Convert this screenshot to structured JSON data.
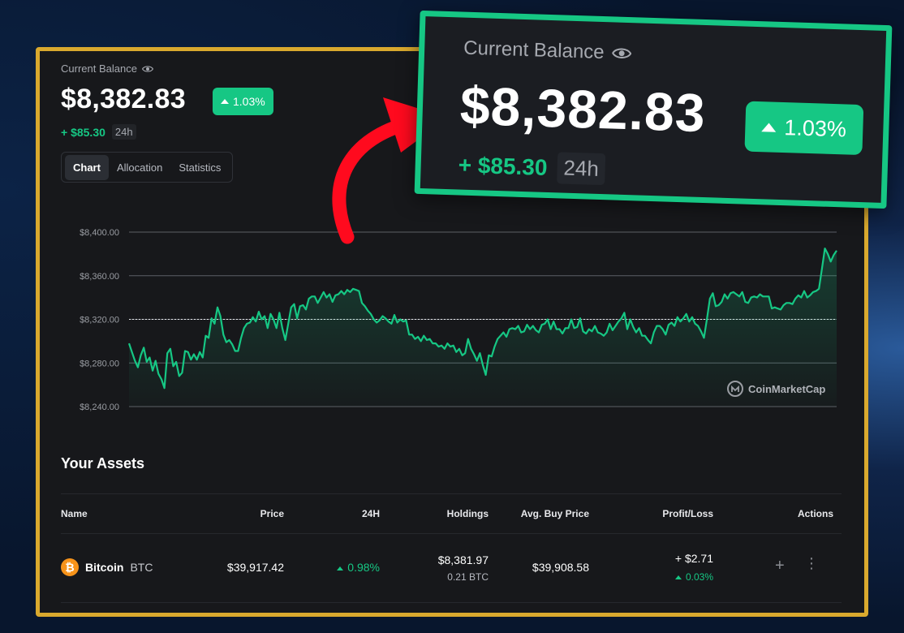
{
  "balance": {
    "label": "Current Balance",
    "value": "$8,382.83",
    "percent": "1.03%",
    "change": "+ $85.30",
    "period": "24h"
  },
  "tabs": [
    "Chart",
    "Allocation",
    "Statistics"
  ],
  "active_tab": "Chart",
  "chart_watermark": "CoinMarketCap",
  "chart_data": {
    "type": "area",
    "y_ticks": [
      "$8,400.00",
      "$8,360.00",
      "$8,320.00",
      "$8,280.00",
      "$8,240.00"
    ],
    "ylim": [
      8240,
      8400
    ],
    "baseline": 8320,
    "color": "#16c784",
    "values": [
      8298,
      8290,
      8282,
      8276,
      8287,
      8294,
      8281,
      8285,
      8273,
      8282,
      8270,
      8265,
      8257,
      8289,
      8293,
      8277,
      8281,
      8268,
      8271,
      8291,
      8290,
      8283,
      8288,
      8283,
      8290,
      8285,
      8305,
      8303,
      8321,
      8316,
      8331,
      8323,
      8306,
      8299,
      8301,
      8297,
      8291,
      8291,
      8303,
      8312,
      8316,
      8317,
      8322,
      8318,
      8327,
      8320,
      8323,
      8312,
      8325,
      8320,
      8312,
      8326,
      8312,
      8301,
      8316,
      8331,
      8334,
      8321,
      8332,
      8333,
      8329,
      8339,
      8341,
      8341,
      8335,
      8340,
      8345,
      8340,
      8343,
      8336,
      8342,
      8343,
      8346,
      8343,
      8347,
      8345,
      8348,
      8347,
      8346,
      8335,
      8332,
      8328,
      8325,
      8320,
      8317,
      8319,
      8323,
      8321,
      8318,
      8316,
      8324,
      8317,
      8320,
      8318,
      8319,
      8306,
      8306,
      8302,
      8304,
      8300,
      8305,
      8301,
      8302,
      8298,
      8298,
      8295,
      8296,
      8293,
      8298,
      8295,
      8296,
      8290,
      8293,
      8287,
      8289,
      8302,
      8293,
      8288,
      8282,
      8289,
      8278,
      8269,
      8287,
      8286,
      8295,
      8302,
      8305,
      8308,
      8304,
      8311,
      8312,
      8311,
      8314,
      8308,
      8309,
      8315,
      8311,
      8314,
      8310,
      8308,
      8315,
      8316,
      8320,
      8311,
      8318,
      8311,
      8311,
      8307,
      8312,
      8312,
      8320,
      8312,
      8313,
      8321,
      8309,
      8307,
      8311,
      8309,
      8314,
      8308,
      8307,
      8305,
      8308,
      8316,
      8310,
      8314,
      8318,
      8321,
      8326,
      8311,
      8320,
      8313,
      8308,
      8312,
      8305,
      8305,
      8301,
      8298,
      8308,
      8314,
      8314,
      8311,
      8306,
      8315,
      8317,
      8314,
      8322,
      8318,
      8321,
      8325,
      8318,
      8322,
      8316,
      8314,
      8309,
      8303,
      8320,
      8339,
      8344,
      8332,
      8333,
      8336,
      8343,
      8339,
      8344,
      8345,
      8343,
      8341,
      8345,
      8336,
      8335,
      8340,
      8341,
      8340,
      8343,
      8341,
      8341,
      8341,
      8330,
      8331,
      8330,
      8329,
      8333,
      8335,
      8335,
      8334,
      8339,
      8342,
      8340,
      8346,
      8340,
      8342,
      8345,
      8346,
      8348,
      8366,
      8385,
      8380,
      8373,
      8379,
      8383
    ]
  },
  "assets": {
    "title": "Your Assets",
    "columns": [
      "Name",
      "Price",
      "24H",
      "Holdings",
      "Avg. Buy Price",
      "Profit/Loss",
      "Actions"
    ],
    "rows": [
      {
        "name": "Bitcoin",
        "symbol": "BTC",
        "icon": "bitcoin-icon",
        "icon_glyph": "₿",
        "price": "$39,917.42",
        "change_24h": "0.98%",
        "holdings_value": "$8,381.97",
        "holdings_amount": "0.21 BTC",
        "avg_buy_price": "$39,908.58",
        "profit_loss": "+ $2.71",
        "profit_loss_pct": "0.03%"
      }
    ]
  }
}
